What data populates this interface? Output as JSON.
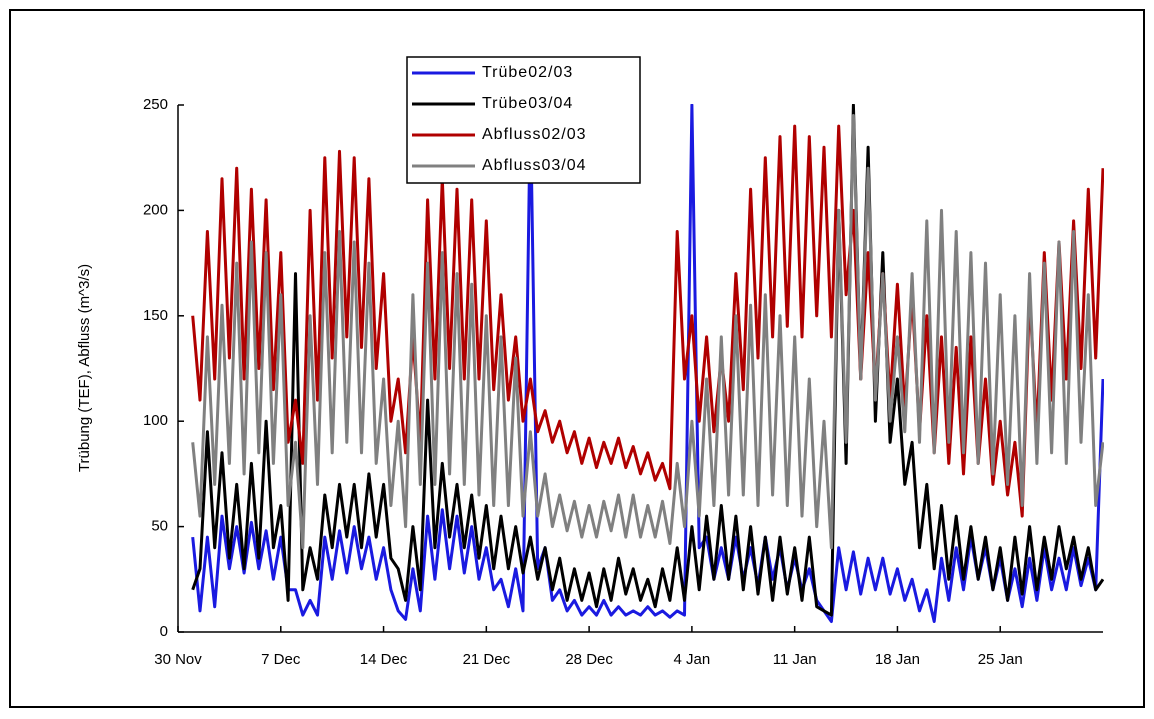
{
  "chart_data": {
    "type": "line",
    "ylabel": "Trübung (TEF), Abfluss (m^3/s)",
    "xlim": [
      0,
      63
    ],
    "ylim": [
      0,
      250
    ],
    "yticks": [
      0,
      50,
      100,
      150,
      200,
      250
    ],
    "xticks": [
      {
        "value": 0,
        "label": "30 Nov"
      },
      {
        "value": 7,
        "label": "7 Dec"
      },
      {
        "value": 14,
        "label": "14 Dec"
      },
      {
        "value": 21,
        "label": "21 Dec"
      },
      {
        "value": 28,
        "label": "28 Dec"
      },
      {
        "value": 35,
        "label": "4 Jan"
      },
      {
        "value": 42,
        "label": "11 Jan"
      },
      {
        "value": 49,
        "label": "18 Jan"
      },
      {
        "value": 56,
        "label": "25 Jan"
      }
    ],
    "x": [
      1,
      1.5,
      2,
      2.5,
      3,
      3.5,
      4,
      4.5,
      5,
      5.5,
      6,
      6.5,
      7,
      7.5,
      8,
      8.5,
      9,
      9.5,
      10,
      10.5,
      11,
      11.5,
      12,
      12.5,
      13,
      13.5,
      14,
      14.5,
      15,
      15.5,
      16,
      16.5,
      17,
      17.5,
      18,
      18.5,
      19,
      19.5,
      20,
      20.5,
      21,
      21.5,
      22,
      22.5,
      23,
      23.5,
      24,
      24.5,
      25,
      25.5,
      26,
      26.5,
      27,
      27.5,
      28,
      28.5,
      29,
      29.5,
      30,
      30.5,
      31,
      31.5,
      32,
      32.5,
      33,
      33.5,
      34,
      34.5,
      35,
      35.5,
      36,
      36.5,
      37,
      37.5,
      38,
      38.5,
      39,
      39.5,
      40,
      40.5,
      41,
      41.5,
      42,
      42.5,
      43,
      43.5,
      44,
      44.5,
      45,
      45.5,
      46,
      46.5,
      47,
      47.5,
      48,
      48.5,
      49,
      49.5,
      50,
      50.5,
      51,
      51.5,
      52,
      52.5,
      53,
      53.5,
      54,
      54.5,
      55,
      55.5,
      56,
      56.5,
      57,
      57.5,
      58,
      58.5,
      59,
      59.5,
      60,
      60.5,
      61,
      61.5,
      62,
      62.5,
      63
    ],
    "series": [
      {
        "name": "Trübe02/03",
        "color": "#1a1ae0",
        "values": [
          45,
          10,
          45,
          12,
          55,
          30,
          50,
          28,
          52,
          30,
          48,
          25,
          45,
          20,
          20,
          8,
          15,
          8,
          45,
          25,
          48,
          28,
          50,
          30,
          45,
          25,
          40,
          20,
          10,
          6,
          30,
          10,
          55,
          25,
          58,
          30,
          55,
          28,
          50,
          25,
          40,
          20,
          25,
          12,
          30,
          10,
          250,
          30,
          40,
          15,
          20,
          10,
          15,
          8,
          12,
          8,
          15,
          8,
          12,
          8,
          10,
          8,
          12,
          8,
          10,
          7,
          10,
          8,
          250,
          40,
          45,
          25,
          40,
          25,
          45,
          25,
          40,
          22,
          45,
          25,
          40,
          20,
          35,
          20,
          30,
          15,
          10,
          5,
          40,
          20,
          38,
          18,
          35,
          20,
          35,
          18,
          30,
          15,
          25,
          10,
          20,
          5,
          35,
          15,
          40,
          20,
          45,
          25,
          40,
          20,
          35,
          15,
          30,
          12,
          35,
          15,
          40,
          20,
          35,
          20,
          40,
          22,
          35,
          20,
          120
        ]
      },
      {
        "name": "Trübe03/04",
        "color": "#000000",
        "values": [
          20,
          30,
          95,
          40,
          85,
          35,
          70,
          30,
          80,
          35,
          100,
          40,
          60,
          15,
          170,
          20,
          40,
          25,
          65,
          40,
          70,
          45,
          70,
          40,
          75,
          45,
          70,
          35,
          30,
          15,
          50,
          20,
          110,
          40,
          80,
          45,
          70,
          40,
          65,
          35,
          60,
          30,
          55,
          30,
          50,
          28,
          45,
          25,
          40,
          20,
          35,
          15,
          30,
          15,
          28,
          12,
          30,
          15,
          35,
          18,
          30,
          15,
          25,
          12,
          30,
          15,
          40,
          15,
          50,
          20,
          55,
          25,
          60,
          25,
          55,
          20,
          50,
          18,
          45,
          15,
          45,
          18,
          40,
          15,
          45,
          12,
          10,
          8,
          200,
          80,
          250,
          120,
          230,
          100,
          180,
          90,
          120,
          70,
          90,
          40,
          70,
          30,
          60,
          25,
          55,
          25,
          50,
          25,
          45,
          20,
          40,
          15,
          45,
          18,
          50,
          20,
          45,
          25,
          50,
          30,
          45,
          25,
          40,
          20,
          25
        ]
      },
      {
        "name": "Abfluss02/03",
        "color": "#b00000",
        "values": [
          150,
          110,
          190,
          120,
          215,
          130,
          220,
          120,
          210,
          125,
          205,
          115,
          180,
          90,
          110,
          80,
          200,
          110,
          225,
          130,
          228,
          140,
          225,
          135,
          215,
          125,
          170,
          100,
          120,
          85,
          140,
          90,
          205,
          120,
          215,
          125,
          210,
          120,
          205,
          120,
          195,
          115,
          160,
          110,
          140,
          100,
          120,
          95,
          105,
          90,
          100,
          85,
          95,
          80,
          92,
          78,
          90,
          80,
          92,
          78,
          88,
          75,
          85,
          72,
          80,
          68,
          190,
          120,
          150,
          100,
          140,
          95,
          130,
          100,
          170,
          115,
          210,
          130,
          225,
          140,
          235,
          145,
          240,
          140,
          235,
          150,
          230,
          140,
          240,
          160,
          200,
          120,
          180,
          115,
          170,
          110,
          165,
          105,
          160,
          95,
          150,
          85,
          140,
          80,
          135,
          75,
          140,
          80,
          120,
          70,
          100,
          65,
          90,
          55,
          160,
          95,
          180,
          110,
          185,
          120,
          195,
          125,
          210,
          130,
          220
        ]
      },
      {
        "name": "Abfluss03/04",
        "color": "#808080",
        "values": [
          90,
          55,
          140,
          70,
          155,
          80,
          175,
          75,
          185,
          85,
          180,
          80,
          160,
          60,
          90,
          40,
          150,
          70,
          180,
          85,
          190,
          90,
          185,
          85,
          175,
          80,
          120,
          60,
          100,
          50,
          160,
          70,
          175,
          70,
          180,
          75,
          170,
          70,
          165,
          65,
          150,
          60,
          140,
          60,
          130,
          55,
          95,
          55,
          75,
          50,
          65,
          48,
          62,
          45,
          60,
          45,
          62,
          48,
          65,
          45,
          65,
          45,
          60,
          45,
          62,
          42,
          80,
          50,
          100,
          55,
          120,
          60,
          140,
          65,
          150,
          65,
          155,
          60,
          160,
          65,
          150,
          60,
          140,
          55,
          120,
          50,
          100,
          40,
          200,
          90,
          245,
          120,
          220,
          110,
          170,
          100,
          140,
          95,
          170,
          90,
          195,
          85,
          200,
          90,
          190,
          85,
          180,
          80,
          175,
          75,
          160,
          70,
          150,
          60,
          170,
          80,
          175,
          85,
          185,
          80,
          190,
          90,
          160,
          60,
          90
        ]
      }
    ]
  }
}
